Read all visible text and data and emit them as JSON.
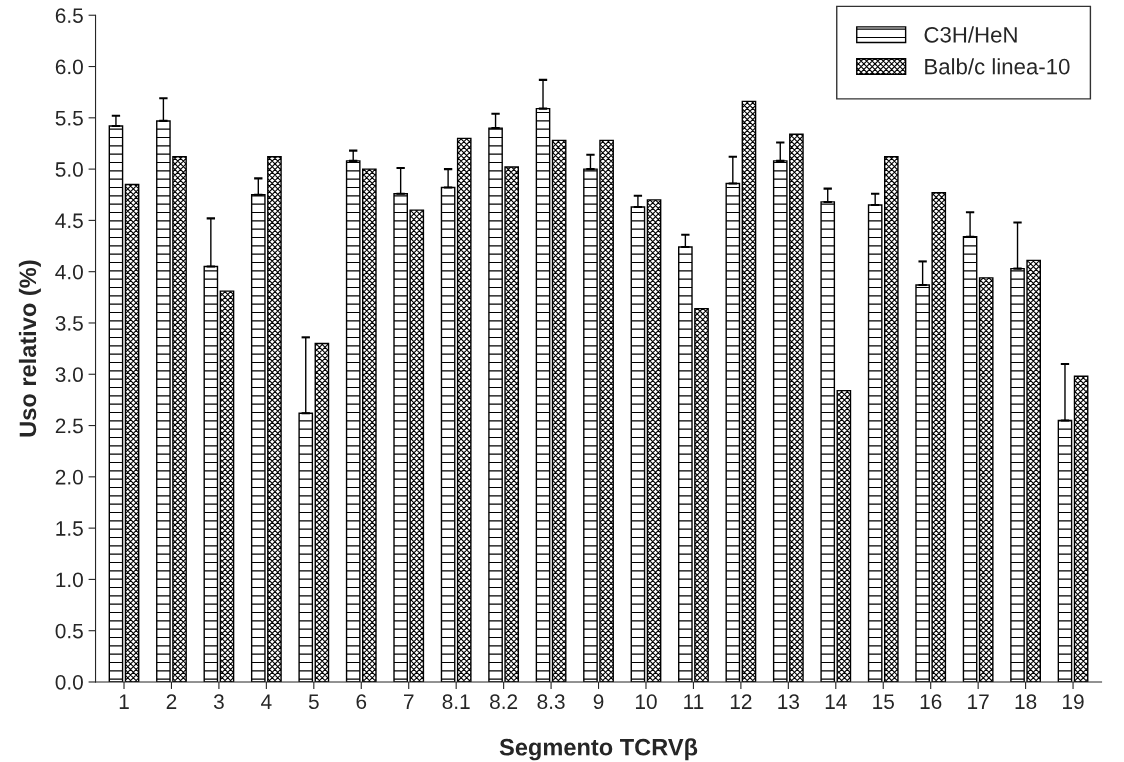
{
  "chart_data": {
    "type": "bar",
    "xlabel": "Segmento TCRVβ",
    "ylabel": "Uso relativo (%)",
    "categories": [
      "1",
      "2",
      "3",
      "4",
      "5",
      "6",
      "7",
      "8.1",
      "8.2",
      "8.3",
      "9",
      "10",
      "11",
      "12",
      "13",
      "14",
      "15",
      "16",
      "17",
      "18",
      "19"
    ],
    "series": [
      {
        "name": "C3H/HeN",
        "color": "#000000",
        "values": [
          5.42,
          5.47,
          4.05,
          4.75,
          2.62,
          5.08,
          4.76,
          4.82,
          5.4,
          5.59,
          5.0,
          4.63,
          4.24,
          4.86,
          5.08,
          4.68,
          4.65,
          3.87,
          4.34,
          4.03,
          2.55
        ],
        "errors": [
          [
            5.42,
            5.52
          ],
          [
            5.47,
            5.69
          ],
          [
            4.05,
            4.52
          ],
          [
            4.75,
            4.91
          ],
          [
            2.62,
            3.36
          ],
          [
            5.08,
            5.18
          ],
          [
            4.76,
            5.01
          ],
          [
            4.82,
            5.0
          ],
          [
            5.4,
            5.54
          ],
          [
            5.59,
            5.87
          ],
          [
            5.0,
            5.14
          ],
          [
            4.63,
            4.74
          ],
          [
            4.24,
            4.36
          ],
          [
            4.86,
            5.12
          ],
          [
            5.08,
            5.26
          ],
          [
            4.68,
            4.81
          ],
          [
            4.65,
            4.76
          ],
          [
            3.87,
            4.1
          ],
          [
            4.34,
            4.58
          ],
          [
            4.03,
            4.48
          ],
          [
            2.55,
            3.1
          ]
        ]
      },
      {
        "name": "Balb/c linea-10",
        "color": "#000000",
        "values": [
          4.85,
          5.12,
          3.81,
          5.12,
          3.3,
          5.0,
          4.6,
          5.3,
          5.02,
          5.28,
          5.28,
          4.7,
          3.64,
          5.66,
          5.34,
          2.84,
          5.12,
          4.77,
          3.94,
          4.11,
          2.98
        ]
      }
    ],
    "ylim": [
      0,
      6.5
    ],
    "yticks": [
      {
        "value": 0,
        "label": "0.0"
      },
      {
        "value": 0.5,
        "label": "0.5"
      },
      {
        "value": 1,
        "label": "1.0"
      },
      {
        "value": 1.5,
        "label": "1.5"
      },
      {
        "value": 2,
        "label": "2.0"
      },
      {
        "value": 2.5,
        "label": "2.5"
      },
      {
        "value": 3,
        "label": "3.0"
      },
      {
        "value": 3.5,
        "label": "3.5"
      },
      {
        "value": 4,
        "label": "4.0"
      },
      {
        "value": 4.5,
        "label": "4.5"
      },
      {
        "value": 5,
        "label": "5.0"
      },
      {
        "value": 5.5,
        "label": "5.5"
      },
      {
        "value": 6,
        "label": "6.0"
      },
      {
        "value": 6.5,
        "label": "6.5"
      }
    ],
    "grid": false,
    "legend": "top right"
  }
}
